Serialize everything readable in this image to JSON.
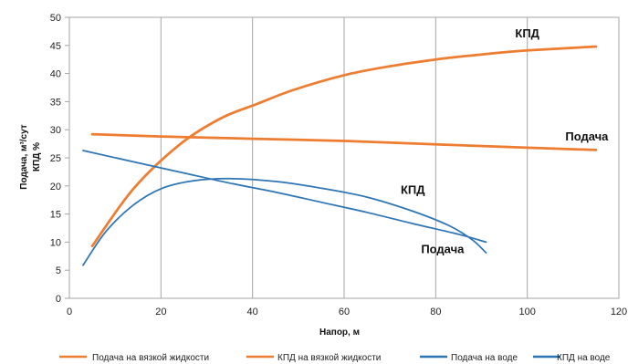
{
  "chart_data": {
    "type": "line",
    "xlabel": "Напор, м",
    "ylabel_line1": "Подача, м³/сут",
    "ylabel_line2": "КПД %",
    "xlim": [
      0,
      120
    ],
    "ylim": [
      0,
      50
    ],
    "x_ticks": [
      0,
      20,
      40,
      60,
      80,
      100,
      120
    ],
    "y_ticks": [
      0,
      5,
      10,
      15,
      20,
      25,
      30,
      35,
      40,
      45,
      50
    ],
    "grid": "vertical",
    "legend_position": "bottom",
    "series": [
      {
        "name": "Подача на вязкой жидкости",
        "color": "#ed7d31",
        "points": [
          [
            5,
            29.2
          ],
          [
            20,
            28.8
          ],
          [
            40,
            28.4
          ],
          [
            60,
            28.0
          ],
          [
            80,
            27.4
          ],
          [
            100,
            26.8
          ],
          [
            115,
            26.4
          ]
        ]
      },
      {
        "name": "КПД на вязкой жидкости",
        "color": "#ed7d31",
        "points": [
          [
            5,
            9.3
          ],
          [
            14,
            19.5
          ],
          [
            24,
            27.3
          ],
          [
            33,
            32.0
          ],
          [
            41,
            34.6
          ],
          [
            49,
            37.1
          ],
          [
            60,
            39.7
          ],
          [
            70,
            41.3
          ],
          [
            80,
            42.5
          ],
          [
            90,
            43.4
          ],
          [
            100,
            44.1
          ],
          [
            115,
            44.8
          ]
        ]
      },
      {
        "name": "Подача на воде",
        "color": "#2e75b6",
        "points": [
          [
            3,
            26.3
          ],
          [
            15,
            24.1
          ],
          [
            25,
            22.3
          ],
          [
            35,
            20.5
          ],
          [
            45,
            18.9
          ],
          [
            55,
            17.1
          ],
          [
            65,
            15.3
          ],
          [
            75,
            13.3
          ],
          [
            85,
            11.4
          ],
          [
            91,
            10.0
          ]
        ]
      },
      {
        "name": "КПД на воде",
        "color": "#2e75b6",
        "points": [
          [
            3,
            5.9
          ],
          [
            8,
            11.9
          ],
          [
            14,
            16.6
          ],
          [
            20,
            19.5
          ],
          [
            27,
            20.9
          ],
          [
            35,
            21.3
          ],
          [
            45,
            20.8
          ],
          [
            55,
            19.6
          ],
          [
            65,
            18.0
          ],
          [
            75,
            15.5
          ],
          [
            83,
            12.9
          ],
          [
            88,
            10.4
          ],
          [
            91,
            8.1
          ]
        ]
      }
    ],
    "annotations": [
      {
        "text": "КПД",
        "x": 100,
        "y": 46.4
      },
      {
        "text": "Подача",
        "x": 113,
        "y": 28.1
      },
      {
        "text": "КПД",
        "x": 75,
        "y": 18.6
      },
      {
        "text": "Подача",
        "x": 81.5,
        "y": 8.0
      }
    ]
  }
}
